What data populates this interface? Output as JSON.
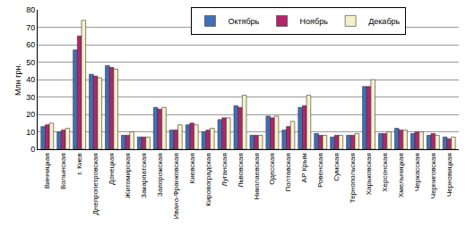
{
  "chart_data": {
    "type": "bar",
    "y_label": "Млн грн.",
    "categories": [
      "Винницкая",
      "Волынская",
      "г. Киев",
      "Днепропетровская",
      "Донецкая",
      "Житомирская",
      "Закарпатская",
      "Запорожская",
      "Ивано-Франковская",
      "Киевская",
      "Кировоградская",
      "Луганская",
      "Львовская",
      "Николаевская",
      "Одесская",
      "Полтавская",
      "АР Крым",
      "Ровенская",
      "Сумская",
      "Тернопольская",
      "Харьковская",
      "Херсонская",
      "Хмельницкая",
      "Черкасская",
      "Черниговская",
      "Черновицкая"
    ],
    "series": [
      {
        "name": "Октябрь",
        "color": "#3f6fb6",
        "values": [
          13,
          10,
          57,
          43,
          48,
          8,
          7,
          24,
          11,
          14,
          10,
          17,
          25,
          8,
          19,
          11,
          24,
          9,
          7,
          8,
          36,
          9,
          12,
          9,
          8,
          7
        ]
      },
      {
        "name": "Ноябрь",
        "color": "#b3246b",
        "values": [
          14,
          11,
          65,
          42,
          47,
          8,
          7,
          23,
          11,
          15,
          11,
          18,
          24,
          8,
          18,
          13,
          25,
          8,
          8,
          8,
          36,
          9,
          11,
          10,
          9,
          6
        ]
      },
      {
        "name": "Декабрь",
        "color": "#f6f1c9",
        "values": [
          15,
          12,
          74,
          41,
          46,
          10,
          7,
          24,
          14,
          14,
          12,
          18,
          31,
          8,
          19,
          16,
          31,
          8,
          8,
          9,
          40,
          10,
          11,
          10,
          8,
          7
        ]
      }
    ],
    "ylim": [
      0,
      80
    ],
    "yticks": [
      0,
      10,
      20,
      30,
      40,
      50,
      60,
      70,
      80
    ],
    "grid": true,
    "legend": "top"
  }
}
